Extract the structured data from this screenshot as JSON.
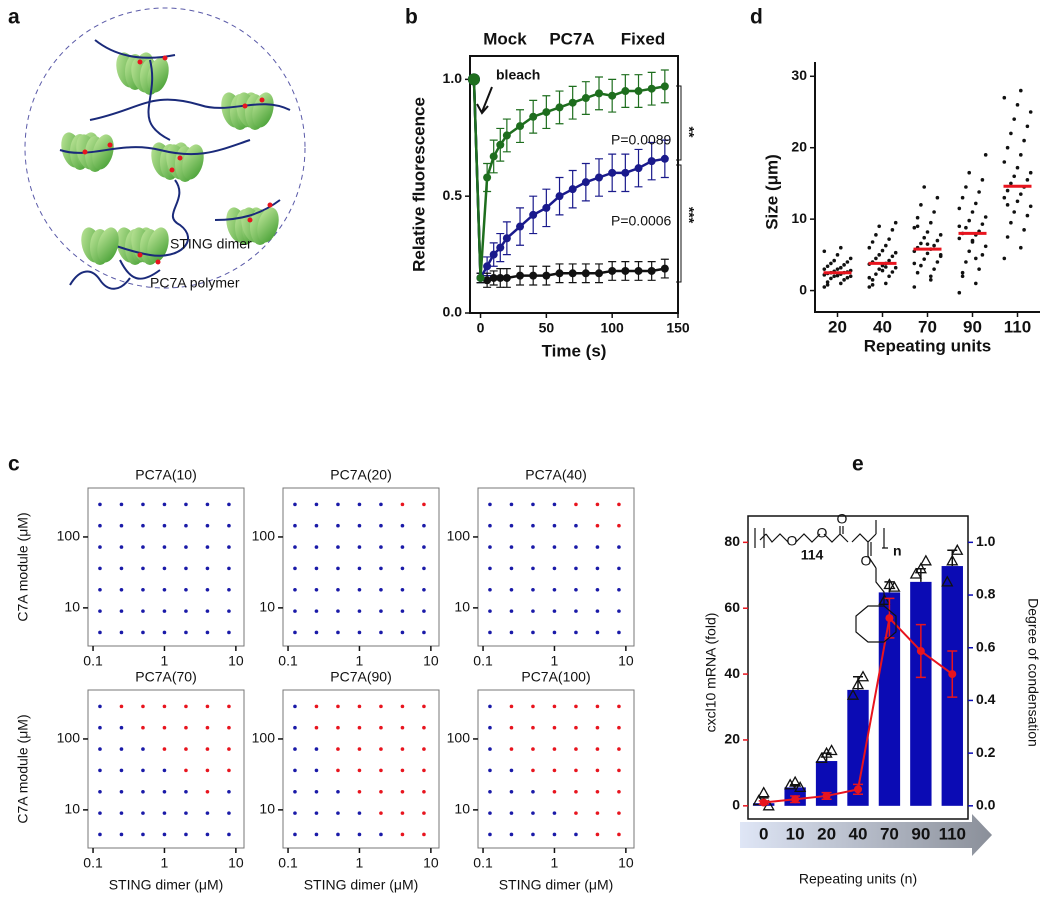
{
  "diagram": {
    "panel": "a",
    "legend": [
      "STING dimer",
      "PC7A polymer"
    ]
  },
  "chart_data": [
    {
      "type": "line",
      "panel": "b",
      "x": [
        -5,
        0,
        5,
        10,
        15,
        20,
        30,
        40,
        50,
        60,
        70,
        80,
        90,
        100,
        110,
        120,
        130,
        140
      ],
      "series": [
        {
          "name": "Mock",
          "color": "#1e6e1e",
          "values": [
            1.0,
            0.15,
            0.58,
            0.67,
            0.72,
            0.76,
            0.8,
            0.84,
            0.86,
            0.88,
            0.9,
            0.92,
            0.94,
            0.93,
            0.95,
            0.95,
            0.96,
            0.97
          ],
          "errors": [
            0,
            0.02,
            0.06,
            0.07,
            0.07,
            0.07,
            0.07,
            0.07,
            0.07,
            0.07,
            0.07,
            0.07,
            0.07,
            0.07,
            0.07,
            0.07,
            0.07,
            0.07
          ]
        },
        {
          "name": "PC7A",
          "color": "#1a1a8c",
          "values": [
            1.0,
            0.15,
            0.2,
            0.25,
            0.28,
            0.32,
            0.37,
            0.42,
            0.45,
            0.5,
            0.53,
            0.56,
            0.58,
            0.6,
            0.6,
            0.62,
            0.65,
            0.66
          ],
          "errors": [
            0,
            0.02,
            0.04,
            0.05,
            0.06,
            0.07,
            0.08,
            0.08,
            0.08,
            0.08,
            0.08,
            0.08,
            0.08,
            0.08,
            0.08,
            0.08,
            0.08,
            0.08
          ]
        },
        {
          "name": "Fixed",
          "color": "#111111",
          "values": [
            1.0,
            0.15,
            0.14,
            0.15,
            0.15,
            0.15,
            0.16,
            0.16,
            0.16,
            0.17,
            0.17,
            0.17,
            0.17,
            0.18,
            0.18,
            0.18,
            0.18,
            0.19
          ],
          "errors": [
            0,
            0.02,
            0.03,
            0.03,
            0.04,
            0.04,
            0.04,
            0.04,
            0.04,
            0.04,
            0.04,
            0.04,
            0.04,
            0.04,
            0.04,
            0.04,
            0.04,
            0.04
          ]
        }
      ],
      "xlabel": "Time (s)",
      "ylabel": "Relative fluorescence",
      "xlim": [
        -8,
        150
      ],
      "xticks": [
        0,
        50,
        100,
        150
      ],
      "ylim": [
        0,
        1.1
      ],
      "yticks": [
        {
          "value": 0,
          "label": "0.0"
        },
        0.5,
        {
          "value": 1,
          "label": "1.0"
        }
      ],
      "annotations": [
        "bleach",
        "P=0.0089",
        "**",
        "P=0.0006",
        "***"
      ]
    },
    {
      "type": "strip",
      "panel": "d",
      "categories": [
        "20",
        "40",
        "70",
        "90",
        "110"
      ],
      "values": [
        [
          0.5,
          1,
          1.2,
          1.5,
          1.7,
          1.8,
          2,
          2,
          2.1,
          2.2,
          2.3,
          2.4,
          2.5,
          2.5,
          2.6,
          2.7,
          2.8,
          3,
          3,
          3.2,
          3.4,
          3.6,
          3.8,
          4,
          4.2,
          4.5,
          5,
          5.5,
          6,
          0.8
        ],
        [
          0.5,
          1,
          1.5,
          2,
          2.3,
          2.6,
          3,
          3.2,
          3.5,
          3.7,
          3.8,
          4,
          4.2,
          4.5,
          4.8,
          5,
          5.3,
          5.6,
          6,
          6.3,
          6.8,
          7.2,
          7.8,
          8.5,
          9,
          9.5,
          2.8,
          1.8,
          3.3,
          0.8
        ],
        [
          0.5,
          1.5,
          2.5,
          3,
          3.5,
          4,
          4.4,
          4.8,
          5.2,
          5.5,
          5.8,
          6,
          6.3,
          6.6,
          7,
          7.4,
          7.8,
          8.2,
          8.8,
          9.5,
          10.2,
          11,
          12,
          13,
          14.5,
          5,
          6.5,
          3.8,
          2,
          9
        ],
        [
          -0.3,
          1,
          2,
          3,
          4,
          5,
          5.5,
          6.2,
          6.8,
          7.3,
          7.8,
          8,
          8.3,
          8.8,
          9.3,
          9.8,
          10.3,
          11,
          11.5,
          12.2,
          13,
          13.8,
          14.5,
          15.5,
          16.5,
          19,
          7,
          9,
          4.5,
          2.5
        ],
        [
          4.5,
          6,
          7.5,
          8.5,
          9.5,
          10.5,
          11,
          11.8,
          12.5,
          13,
          13.5,
          14,
          14.5,
          15,
          15.5,
          16,
          16.5,
          17.2,
          18,
          19,
          20,
          21,
          22,
          23,
          24,
          25,
          26,
          27,
          28,
          12
        ]
      ],
      "medians": [
        2.5,
        3.8,
        5.8,
        8.0,
        14.6
      ],
      "color": "#111111",
      "median_color": "#e8141e",
      "xlabel": "Repeating units",
      "ylabel": "Size (μm)",
      "ylim": [
        -3,
        32
      ],
      "yticks": [
        0,
        10,
        20,
        30
      ]
    },
    {
      "type": "dotgrid",
      "panel": "c",
      "title": "PC7A(10)",
      "ylabel": "C7A module (μM)",
      "x": [
        0.125,
        0.25,
        0.5,
        1,
        2,
        4,
        8
      ],
      "y": [
        288,
        144,
        72,
        36,
        18,
        9,
        4.5
      ],
      "xlim": [
        0.085,
        13
      ],
      "xticks": [
        0.1,
        1,
        10
      ],
      "ylim": [
        2.9,
        490
      ],
      "yticks": [
        10,
        100
      ],
      "colors": [
        [
          "#1a1aa8",
          "#1a1aa8",
          "#1a1aa8",
          "#1a1aa8",
          "#1a1aa8",
          "#1a1aa8",
          "#1a1aa8"
        ],
        [
          "#1a1aa8",
          "#1a1aa8",
          "#1a1aa8",
          "#1a1aa8",
          "#1a1aa8",
          "#1a1aa8",
          "#1a1aa8"
        ],
        [
          "#1a1aa8",
          "#1a1aa8",
          "#1a1aa8",
          "#1a1aa8",
          "#1a1aa8",
          "#1a1aa8",
          "#1a1aa8"
        ],
        [
          "#1a1aa8",
          "#1a1aa8",
          "#1a1aa8",
          "#1a1aa8",
          "#1a1aa8",
          "#1a1aa8",
          "#1a1aa8"
        ],
        [
          "#1a1aa8",
          "#1a1aa8",
          "#1a1aa8",
          "#1a1aa8",
          "#1a1aa8",
          "#1a1aa8",
          "#1a1aa8"
        ],
        [
          "#1a1aa8",
          "#1a1aa8",
          "#1a1aa8",
          "#1a1aa8",
          "#1a1aa8",
          "#1a1aa8",
          "#1a1aa8"
        ],
        [
          "#1a1aa8",
          "#1a1aa8",
          "#1a1aa8",
          "#1a1aa8",
          "#1a1aa8",
          "#1a1aa8",
          "#1a1aa8"
        ]
      ]
    },
    {
      "type": "dotgrid",
      "title": "PC7A(20)",
      "x": [
        0.125,
        0.25,
        0.5,
        1,
        2,
        4,
        8
      ],
      "y": [
        288,
        144,
        72,
        36,
        18,
        9,
        4.5
      ],
      "xlim": [
        0.085,
        13
      ],
      "xticks": [
        0.1,
        1,
        10
      ],
      "ylim": [
        2.9,
        490
      ],
      "yticks": [
        10,
        100
      ],
      "colors": [
        [
          "#1a1aa8",
          "#1a1aa8",
          "#1a1aa8",
          "#1a1aa8",
          "#1a1aa8",
          "#e8141e",
          "#e8141e"
        ],
        [
          "#1a1aa8",
          "#1a1aa8",
          "#1a1aa8",
          "#1a1aa8",
          "#1a1aa8",
          "#1a1aa8",
          "#1a1aa8"
        ],
        [
          "#1a1aa8",
          "#1a1aa8",
          "#1a1aa8",
          "#1a1aa8",
          "#1a1aa8",
          "#1a1aa8",
          "#1a1aa8"
        ],
        [
          "#1a1aa8",
          "#1a1aa8",
          "#1a1aa8",
          "#1a1aa8",
          "#1a1aa8",
          "#1a1aa8",
          "#1a1aa8"
        ],
        [
          "#1a1aa8",
          "#1a1aa8",
          "#1a1aa8",
          "#1a1aa8",
          "#1a1aa8",
          "#1a1aa8",
          "#1a1aa8"
        ],
        [
          "#1a1aa8",
          "#1a1aa8",
          "#1a1aa8",
          "#1a1aa8",
          "#1a1aa8",
          "#1a1aa8",
          "#1a1aa8"
        ],
        [
          "#1a1aa8",
          "#1a1aa8",
          "#1a1aa8",
          "#1a1aa8",
          "#1a1aa8",
          "#1a1aa8",
          "#1a1aa8"
        ]
      ]
    },
    {
      "type": "dotgrid",
      "title": "PC7A(40)",
      "x": [
        0.125,
        0.25,
        0.5,
        1,
        2,
        4,
        8
      ],
      "y": [
        288,
        144,
        72,
        36,
        18,
        9,
        4.5
      ],
      "xlim": [
        0.085,
        13
      ],
      "xticks": [
        0.1,
        1,
        10
      ],
      "ylim": [
        2.9,
        490
      ],
      "yticks": [
        10,
        100
      ],
      "colors": [
        [
          "#1a1aa8",
          "#1a1aa8",
          "#1a1aa8",
          "#1a1aa8",
          "#e8141e",
          "#e8141e",
          "#e8141e"
        ],
        [
          "#1a1aa8",
          "#1a1aa8",
          "#1a1aa8",
          "#1a1aa8",
          "#1a1aa8",
          "#e8141e",
          "#e8141e"
        ],
        [
          "#1a1aa8",
          "#1a1aa8",
          "#1a1aa8",
          "#1a1aa8",
          "#1a1aa8",
          "#1a1aa8",
          "#1a1aa8"
        ],
        [
          "#1a1aa8",
          "#1a1aa8",
          "#1a1aa8",
          "#1a1aa8",
          "#1a1aa8",
          "#1a1aa8",
          "#1a1aa8"
        ],
        [
          "#1a1aa8",
          "#1a1aa8",
          "#1a1aa8",
          "#1a1aa8",
          "#1a1aa8",
          "#1a1aa8",
          "#1a1aa8"
        ],
        [
          "#1a1aa8",
          "#1a1aa8",
          "#1a1aa8",
          "#1a1aa8",
          "#1a1aa8",
          "#1a1aa8",
          "#1a1aa8"
        ],
        [
          "#1a1aa8",
          "#1a1aa8",
          "#1a1aa8",
          "#1a1aa8",
          "#1a1aa8",
          "#1a1aa8",
          "#1a1aa8"
        ]
      ]
    },
    {
      "type": "dotgrid",
      "title": "PC7A(70)",
      "ylabel": "C7A module (μM)",
      "xlabel": "STING dimer (μM)",
      "x": [
        0.125,
        0.25,
        0.5,
        1,
        2,
        4,
        8
      ],
      "y": [
        288,
        144,
        72,
        36,
        18,
        9,
        4.5
      ],
      "xlim": [
        0.085,
        13
      ],
      "xticks": [
        0.1,
        1,
        10
      ],
      "ylim": [
        2.9,
        490
      ],
      "yticks": [
        10,
        100
      ],
      "colors": [
        [
          "#1a1aa8",
          "#e8141e",
          "#e8141e",
          "#e8141e",
          "#e8141e",
          "#e8141e",
          "#e8141e"
        ],
        [
          "#1a1aa8",
          "#1a1aa8",
          "#e8141e",
          "#e8141e",
          "#e8141e",
          "#e8141e",
          "#e8141e"
        ],
        [
          "#1a1aa8",
          "#1a1aa8",
          "#1a1aa8",
          "#e8141e",
          "#e8141e",
          "#e8141e",
          "#e8141e"
        ],
        [
          "#1a1aa8",
          "#1a1aa8",
          "#1a1aa8",
          "#1a1aa8",
          "#e8141e",
          "#e8141e",
          "#e8141e"
        ],
        [
          "#1a1aa8",
          "#1a1aa8",
          "#1a1aa8",
          "#1a1aa8",
          "#1a1aa8",
          "#e8141e",
          "#1a1aa8"
        ],
        [
          "#1a1aa8",
          "#1a1aa8",
          "#1a1aa8",
          "#1a1aa8",
          "#1a1aa8",
          "#1a1aa8",
          "#1a1aa8"
        ],
        [
          "#1a1aa8",
          "#1a1aa8",
          "#1a1aa8",
          "#1a1aa8",
          "#1a1aa8",
          "#1a1aa8",
          "#1a1aa8"
        ]
      ]
    },
    {
      "type": "dotgrid",
      "title": "PC7A(90)",
      "xlabel": "STING dimer (μM)",
      "x": [
        0.125,
        0.25,
        0.5,
        1,
        2,
        4,
        8
      ],
      "y": [
        288,
        144,
        72,
        36,
        18,
        9,
        4.5
      ],
      "xlim": [
        0.085,
        13
      ],
      "xticks": [
        0.1,
        1,
        10
      ],
      "ylim": [
        2.9,
        490
      ],
      "yticks": [
        10,
        100
      ],
      "colors": [
        [
          "#1a1aa8",
          "#e8141e",
          "#e8141e",
          "#e8141e",
          "#e8141e",
          "#e8141e",
          "#e8141e"
        ],
        [
          "#1a1aa8",
          "#e8141e",
          "#e8141e",
          "#e8141e",
          "#e8141e",
          "#e8141e",
          "#e8141e"
        ],
        [
          "#1a1aa8",
          "#1a1aa8",
          "#e8141e",
          "#e8141e",
          "#e8141e",
          "#e8141e",
          "#e8141e"
        ],
        [
          "#1a1aa8",
          "#1a1aa8",
          "#e8141e",
          "#e8141e",
          "#e8141e",
          "#e8141e",
          "#e8141e"
        ],
        [
          "#1a1aa8",
          "#1a1aa8",
          "#1a1aa8",
          "#e8141e",
          "#e8141e",
          "#e8141e",
          "#e8141e"
        ],
        [
          "#1a1aa8",
          "#1a1aa8",
          "#1a1aa8",
          "#1a1aa8",
          "#e8141e",
          "#e8141e",
          "#e8141e"
        ],
        [
          "#1a1aa8",
          "#1a1aa8",
          "#1a1aa8",
          "#1a1aa8",
          "#1a1aa8",
          "#e8141e",
          "#e8141e"
        ]
      ]
    },
    {
      "type": "dotgrid",
      "title": "PC7A(100)",
      "xlabel": "STING dimer (μM)",
      "x": [
        0.125,
        0.25,
        0.5,
        1,
        2,
        4,
        8
      ],
      "y": [
        288,
        144,
        72,
        36,
        18,
        9,
        4.5
      ],
      "xlim": [
        0.085,
        13
      ],
      "xticks": [
        0.1,
        1,
        10
      ],
      "ylim": [
        2.9,
        490
      ],
      "yticks": [
        10,
        100
      ],
      "colors": [
        [
          "#1a1aa8",
          "#e8141e",
          "#e8141e",
          "#e8141e",
          "#e8141e",
          "#e8141e",
          "#e8141e"
        ],
        [
          "#1a1aa8",
          "#e8141e",
          "#e8141e",
          "#e8141e",
          "#e8141e",
          "#e8141e",
          "#e8141e"
        ],
        [
          "#1a1aa8",
          "#e8141e",
          "#e8141e",
          "#e8141e",
          "#e8141e",
          "#e8141e",
          "#e8141e"
        ],
        [
          "#1a1aa8",
          "#1a1aa8",
          "#e8141e",
          "#e8141e",
          "#e8141e",
          "#e8141e",
          "#e8141e"
        ],
        [
          "#1a1aa8",
          "#1a1aa8",
          "#1a1aa8",
          "#e8141e",
          "#e8141e",
          "#e8141e",
          "#e8141e"
        ],
        [
          "#1a1aa8",
          "#1a1aa8",
          "#1a1aa8",
          "#1a1aa8",
          "#e8141e",
          "#e8141e",
          "#e8141e"
        ],
        [
          "#1a1aa8",
          "#1a1aa8",
          "#1a1aa8",
          "#1a1aa8",
          "#1a1aa8",
          "#e8141e",
          "#e8141e"
        ]
      ]
    },
    {
      "type": "bar_line",
      "panel": "e",
      "categories": [
        "0",
        "10",
        "20",
        "40",
        "70",
        "90",
        "110"
      ],
      "bars": {
        "axis": "y2",
        "color": "#0b0bb4",
        "values": [
          0.01,
          0.07,
          0.17,
          0.44,
          0.81,
          0.85,
          0.91
        ],
        "errors": [
          0.02,
          0.01,
          0.03,
          0.05,
          0.04,
          0.05,
          0.06
        ],
        "points": [
          [
            0.02,
            0.05,
            0.0
          ],
          [
            0.08,
            0.09,
            0.07
          ],
          [
            0.18,
            0.2,
            0.21
          ],
          [
            0.42,
            0.46,
            0.49
          ],
          [
            0.78,
            0.84,
            0.83
          ],
          [
            0.88,
            0.9,
            0.93
          ],
          [
            0.85,
            0.93,
            0.97
          ]
        ]
      },
      "line": {
        "color": "#e8141e",
        "values": [
          1,
          2,
          3,
          5,
          57,
          47,
          40
        ],
        "errors": [
          0.5,
          1,
          1,
          1.5,
          6,
          8,
          7
        ]
      },
      "ylabel": "cxcl10 mRNA (fold)",
      "y2label": "Degree of condensation",
      "xlabel": "Repeating units (n)",
      "ylim": [
        -4,
        88
      ],
      "yticks": [
        0,
        20,
        40,
        60,
        80
      ],
      "y2lim": [
        -0.05,
        1.1
      ],
      "y2ticks": [
        {
          "value": 0,
          "label": "0.0"
        },
        0.2,
        0.4,
        0.6,
        0.8,
        {
          "value": 1,
          "label": "1.0"
        }
      ],
      "structure": {
        "atoms": [
          "O",
          "O",
          "O",
          "O"
        ],
        "subscripts": [
          "114",
          "n"
        ]
      }
    }
  ]
}
